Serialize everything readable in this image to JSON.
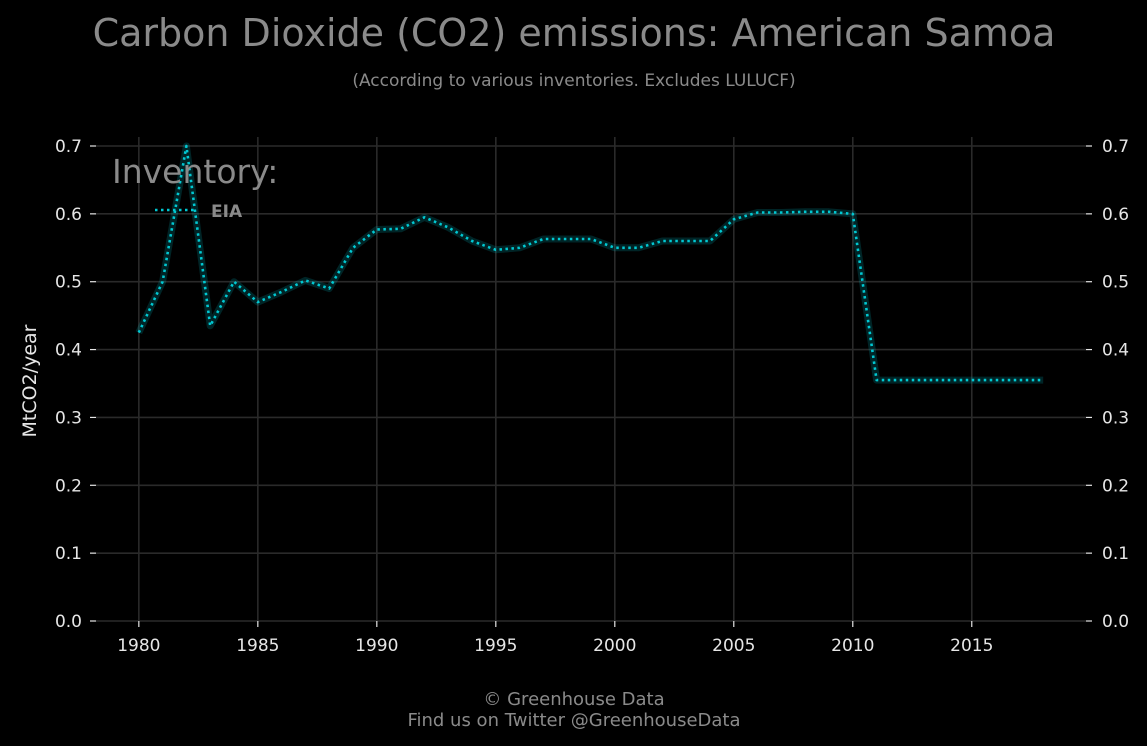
{
  "chart_data": {
    "type": "line",
    "title": "Carbon Dioxide (CO2) emissions: American Samoa",
    "subtitle": "(According to various inventories. Excludes LULUCF)",
    "xlabel": "",
    "ylabel": "MtCO2/year",
    "xlim": [
      1978.2,
      2019.8
    ],
    "ylim": [
      0.0,
      0.7
    ],
    "x_ticks": [
      1980,
      1985,
      1990,
      1995,
      2000,
      2005,
      2010,
      2015
    ],
    "y_ticks": [
      0.0,
      0.1,
      0.2,
      0.3,
      0.4,
      0.5,
      0.6,
      0.7
    ],
    "y_tick_labels": [
      "0.0",
      "0.1",
      "0.2",
      "0.3",
      "0.4",
      "0.5",
      "0.6",
      "0.7"
    ],
    "y_axis_both_sides": true,
    "grid": true,
    "legend": {
      "title": "Inventory:",
      "position": "top-left"
    },
    "x": [
      1980,
      1981,
      1982,
      1983,
      1984,
      1985,
      1986,
      1987,
      1988,
      1989,
      1990,
      1991,
      1992,
      1993,
      1994,
      1995,
      1996,
      1997,
      1998,
      1999,
      2000,
      2001,
      2002,
      2003,
      2004,
      2005,
      2006,
      2007,
      2008,
      2009,
      2010,
      2011,
      2012,
      2013,
      2014,
      2015,
      2016,
      2017,
      2018
    ],
    "series": [
      {
        "name": "EIA",
        "color": "#00c8d2",
        "style": "dotted",
        "values": [
          0.425,
          0.5,
          0.7,
          0.435,
          0.5,
          0.47,
          0.485,
          0.502,
          0.49,
          0.55,
          0.577,
          0.578,
          0.595,
          0.58,
          0.56,
          0.547,
          0.55,
          0.563,
          0.563,
          0.563,
          0.55,
          0.55,
          0.56,
          0.56,
          0.56,
          0.592,
          0.602,
          0.602,
          0.603,
          0.603,
          0.6,
          0.355,
          0.355,
          0.355,
          0.355,
          0.355,
          0.355,
          0.355,
          0.355
        ]
      }
    ]
  },
  "footer": {
    "line1": "© Greenhouse Data",
    "line2": "Find us on Twitter @GreenhouseData"
  },
  "colors": {
    "background": "#000000",
    "grid": "#2a2a2a",
    "text_muted": "#8a8a8a",
    "tick_text": "#e6e6e6",
    "series": "#00c8d2"
  }
}
